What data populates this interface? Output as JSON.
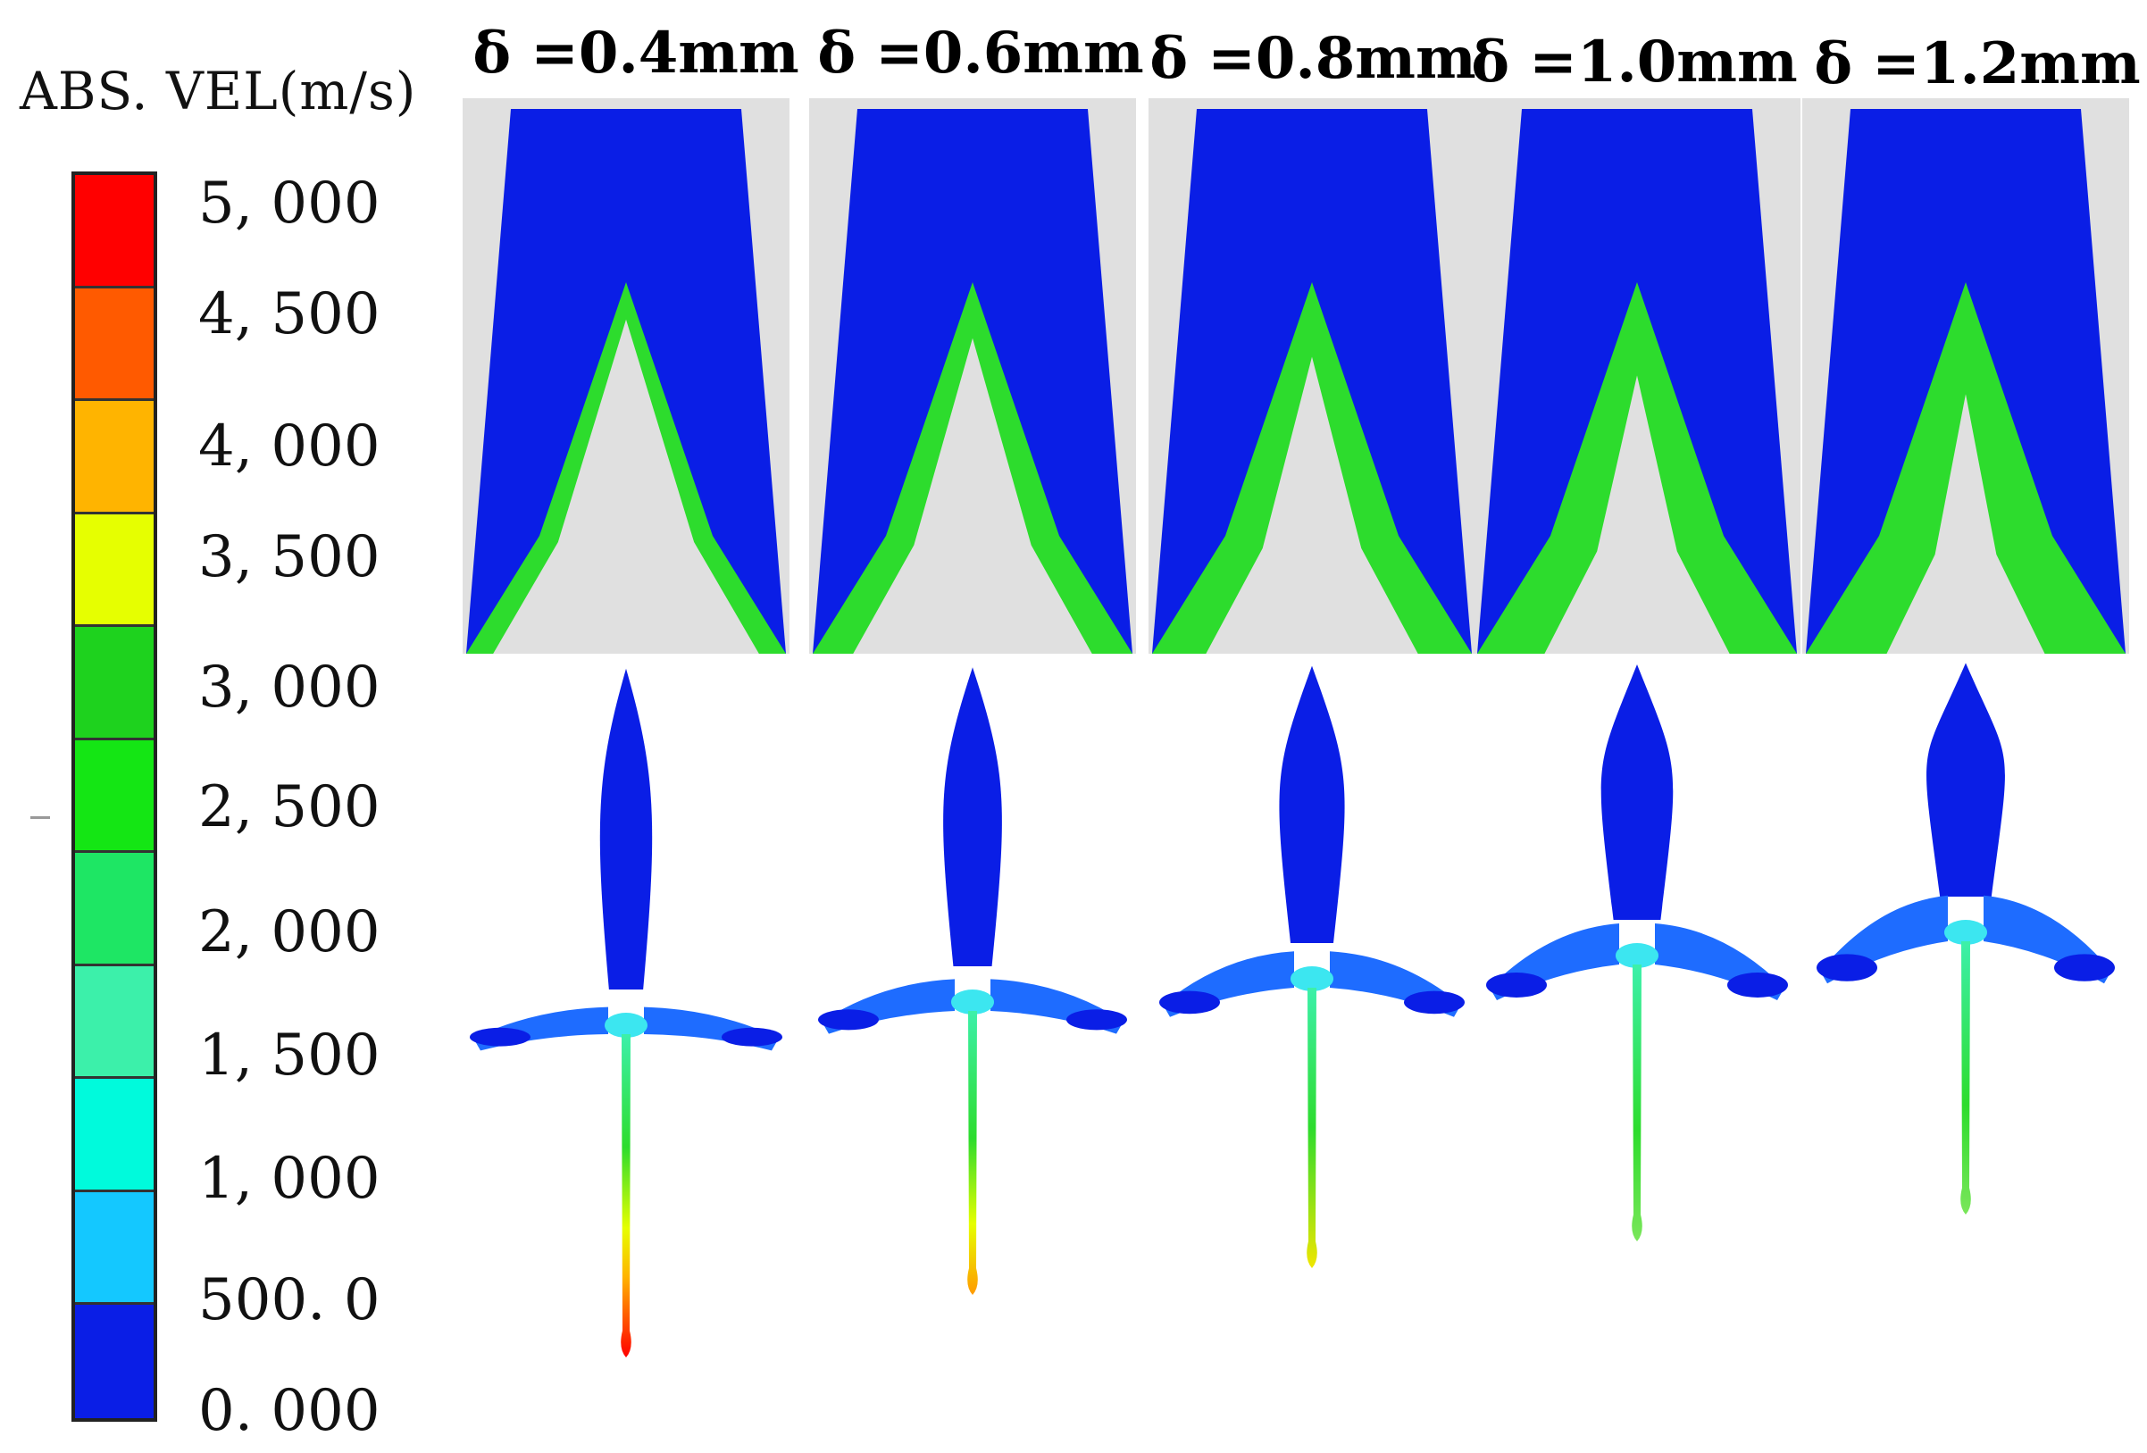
{
  "legend": {
    "title": "ABS. VEL(m/s)",
    "levels": [
      {
        "label": "5, 000",
        "color": "#ff0000"
      },
      {
        "label": "4, 500",
        "color": "#ff5a00"
      },
      {
        "label": "4, 000",
        "color": "#ffb400"
      },
      {
        "label": "3, 500",
        "color": "#e6ff00"
      },
      {
        "label": "3, 000",
        "color": "#1ed21e"
      },
      {
        "label": "2, 500",
        "color": "#14e614"
      },
      {
        "label": "2, 000",
        "color": "#1ee664"
      },
      {
        "label": "1, 500",
        "color": "#3cf0aa"
      },
      {
        "label": "1, 000",
        "color": "#00fadc"
      },
      {
        "label": "500. 0",
        "color": "#14c8ff"
      },
      {
        "label": "0. 000",
        "color": "#0a64ff"
      }
    ],
    "bottom_color": "#0a1ee6"
  },
  "colors": {
    "background_gray": "#e0e0e0",
    "explosive_blue": "#0a1ee6",
    "liner_green": "#2ddc2d"
  },
  "panels": [
    {
      "title": "δ =0.4mm",
      "thickness_mm": 0.4
    },
    {
      "title": "δ =0.6mm",
      "thickness_mm": 0.6
    },
    {
      "title": "δ =0.8mm",
      "thickness_mm": 0.8
    },
    {
      "title": "δ =1.0mm",
      "thickness_mm": 1.0
    },
    {
      "title": "δ =1.2mm",
      "thickness_mm": 1.2
    }
  ]
}
